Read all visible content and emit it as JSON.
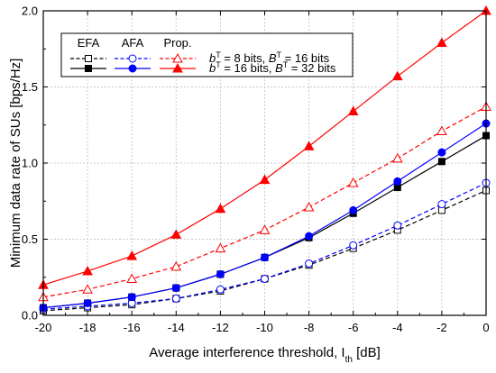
{
  "chart_data": {
    "type": "line",
    "xlabel": "Average interference threshold, I",
    "xlabel_sub": "th",
    "xlabel_unit": " [dB]",
    "ylabel": "Minimum data rate of SUs [bps/Hz]",
    "xlim": [
      -20,
      0
    ],
    "ylim": [
      0,
      2.0
    ],
    "x_ticks": [
      "-20",
      "-18",
      "-16",
      "-14",
      "-12",
      "-10",
      "-8",
      "-6",
      "-4",
      "-2",
      "0"
    ],
    "y_ticks": [
      "0.0",
      "0.5",
      "1.0",
      "1.5",
      "2.0"
    ],
    "grid": true,
    "legend_position": "top-left",
    "legend": {
      "headers": [
        "EFA",
        "AFA",
        "Prop."
      ],
      "row1_text": "b = 8 bits, B = 16 bits",
      "row2_text": "b = 16 bits, B = 32 bits",
      "row1": {
        "b": "b",
        "b_sup": "T",
        "b_eq": " =  8 bits, ",
        "B": "B",
        "B_sup": "T",
        "B_eq": " = 16 bits"
      },
      "row2": {
        "b": "b",
        "b_sup": "T",
        "b_eq": " = 16 bits, ",
        "B": "B",
        "B_sup": "T",
        "B_eq": " = 32 bits"
      }
    },
    "x": [
      -20,
      -18,
      -16,
      -14,
      -12,
      -10,
      -8,
      -6,
      -4,
      -2,
      0
    ],
    "series": [
      {
        "method": "EFA",
        "group": "8/16",
        "color": "#000000",
        "line": "dashed",
        "marker": "square",
        "filled": false,
        "values": [
          0.03,
          0.05,
          0.07,
          0.11,
          0.16,
          0.24,
          0.33,
          0.44,
          0.56,
          0.69,
          0.82
        ]
      },
      {
        "method": "AFA",
        "group": "8/16",
        "color": "#0000ff",
        "line": "dashed",
        "marker": "circle",
        "filled": false,
        "values": [
          0.04,
          0.06,
          0.08,
          0.11,
          0.17,
          0.24,
          0.34,
          0.46,
          0.59,
          0.73,
          0.87
        ]
      },
      {
        "method": "Prop.",
        "group": "8/16",
        "color": "#ff0000",
        "line": "dashed",
        "marker": "triangle",
        "filled": false,
        "values": [
          0.12,
          0.17,
          0.24,
          0.32,
          0.44,
          0.56,
          0.71,
          0.87,
          1.03,
          1.21,
          1.37
        ]
      },
      {
        "method": "EFA",
        "group": "16/32",
        "color": "#000000",
        "line": "solid",
        "marker": "square",
        "filled": true,
        "values": [
          0.05,
          0.08,
          0.12,
          0.18,
          0.27,
          0.38,
          0.51,
          0.67,
          0.84,
          1.01,
          1.18
        ]
      },
      {
        "method": "AFA",
        "group": "16/32",
        "color": "#0000ff",
        "line": "solid",
        "marker": "circle",
        "filled": true,
        "values": [
          0.05,
          0.08,
          0.12,
          0.18,
          0.27,
          0.38,
          0.52,
          0.69,
          0.88,
          1.07,
          1.26
        ]
      },
      {
        "method": "Prop.",
        "group": "16/32",
        "color": "#ff0000",
        "line": "solid",
        "marker": "triangle",
        "filled": true,
        "values": [
          0.2,
          0.29,
          0.39,
          0.53,
          0.7,
          0.89,
          1.11,
          1.34,
          1.57,
          1.79,
          2.0
        ]
      }
    ]
  }
}
